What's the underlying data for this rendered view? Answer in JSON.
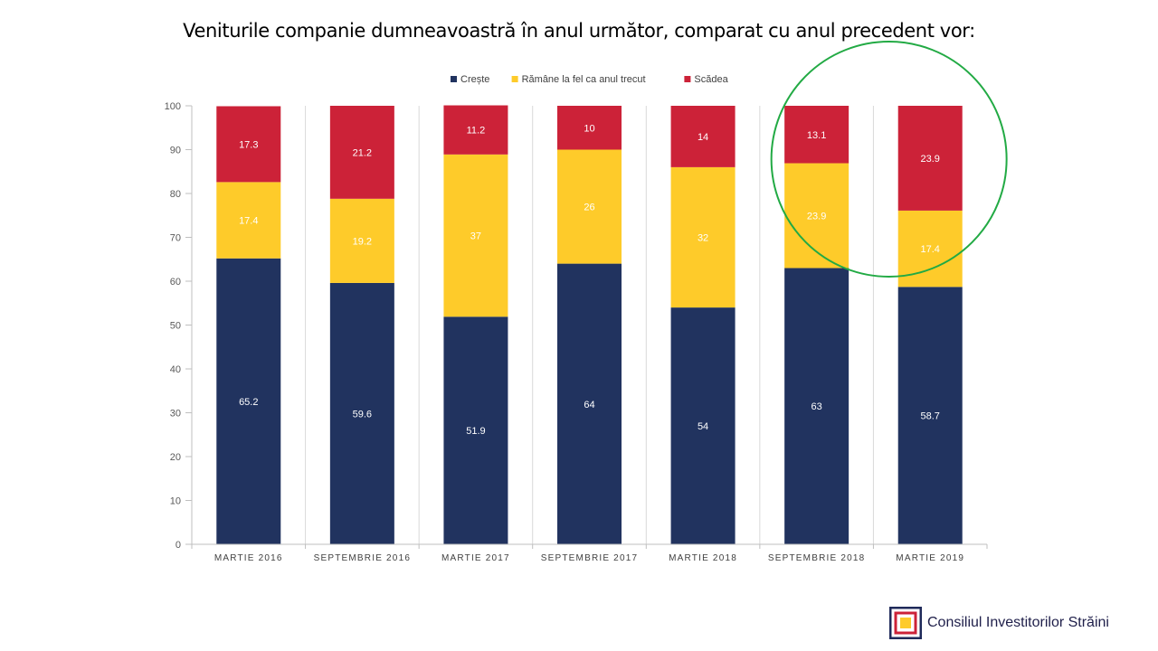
{
  "colors": {
    "creste": "#21335f",
    "ramane": "#fecb2a",
    "scadea": "#cc2238",
    "highlight": "#22aa44",
    "logo_navy": "#1f2a5a",
    "logo_red": "#cc2238",
    "logo_yellow": "#fecb2a"
  },
  "chart_data": {
    "type": "bar",
    "stacked": true,
    "title": "Veniturile companie dumneavoastră în anul următor, comparat cu anul precedent vor:",
    "categories": [
      "MARTIE 2016",
      "SEPTEMBRIE 2016",
      "MARTIE 2017",
      "SEPTEMBRIE 2017",
      "MARTIE 2018",
      "SEPTEMBRIE 2018",
      "MARTIE 2019"
    ],
    "series": [
      {
        "name": "Crește",
        "values": [
          65.2,
          59.6,
          51.9,
          64,
          54,
          63,
          58.7
        ]
      },
      {
        "name": "Rămâne la fel ca anul trecut",
        "values": [
          17.4,
          19.2,
          37,
          26,
          32,
          23.9,
          17.4
        ]
      },
      {
        "name": "Scădea",
        "values": [
          17.3,
          21.2,
          11.2,
          10,
          14,
          13.1,
          23.9
        ]
      }
    ],
    "ylim": [
      0,
      100
    ],
    "yticks": [
      0,
      10,
      20,
      30,
      40,
      50,
      60,
      70,
      80,
      90,
      100
    ],
    "legend": "top-center",
    "highlight_category": "SEPTEMBRIE 2018",
    "gridlines": "vertical-separators"
  },
  "logo": {
    "text": "Consiliul Investitorilor Străini"
  }
}
